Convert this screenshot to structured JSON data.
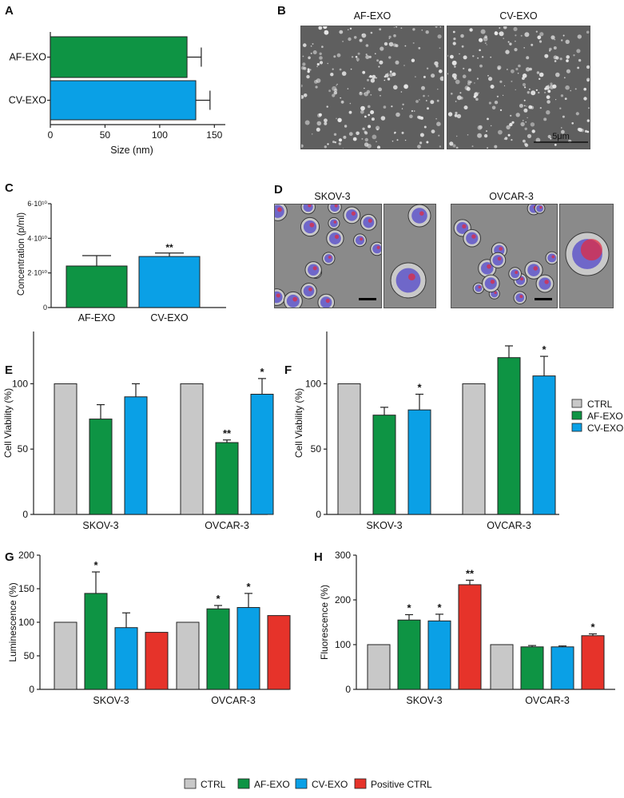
{
  "colors": {
    "ctrl": "#c8c8c8",
    "af": "#0e9444",
    "cv": "#0aa0e6",
    "pos": "#e6332a",
    "bar_stroke": "#222222"
  },
  "panels": {
    "A": {
      "letter": "A",
      "chart_data": {
        "type": "bar",
        "orientation": "horizontal",
        "categories": [
          "AF-EXO",
          "CV-EXO"
        ],
        "values": [
          125,
          133
        ],
        "errors": [
          13,
          13
        ],
        "xlabel": "Size (nm)",
        "xlim": [
          0,
          160
        ],
        "xticks": [
          "0",
          "50",
          "100",
          "150"
        ],
        "tick_values": [
          0,
          50,
          100,
          150
        ]
      }
    },
    "B": {
      "letter": "B",
      "labels": [
        "AF-EXO",
        "CV-EXO"
      ],
      "scale_bar": "5μm"
    },
    "C": {
      "letter": "C",
      "chart_data": {
        "type": "bar",
        "categories": [
          "AF-EXO",
          "CV-EXO"
        ],
        "values": [
          24000000000.0,
          29500000000.0
        ],
        "errors": [
          6000000000.0,
          2000000000.0
        ],
        "ylabel": "Concentration (p/ml)",
        "ylim": [
          0,
          60000000000.0
        ],
        "yticks": [
          "0",
          "2·10¹⁰",
          "4·10¹⁰",
          "6·10¹⁰"
        ],
        "tick_values": [
          0,
          20000000000.0,
          40000000000.0,
          60000000000.0
        ],
        "annotations": [
          "",
          "**"
        ]
      }
    },
    "D": {
      "letter": "D",
      "labels": [
        "SKOV-3",
        "OVCAR-3"
      ]
    },
    "E": {
      "letter": "E",
      "chart_data": {
        "type": "bar",
        "groups": [
          "SKOV-3",
          "OVCAR-3"
        ],
        "ylabel": "Cell Viability (%)",
        "ylim": [
          0,
          140
        ],
        "yticks": [
          "0",
          "50",
          "100"
        ],
        "tick_values": [
          0,
          50,
          100
        ],
        "series": [
          {
            "name": "CTRL",
            "color_key": "ctrl",
            "values": [
              100,
              100
            ],
            "errors": [
              0,
              0
            ],
            "annotations": [
              "",
              ""
            ]
          },
          {
            "name": "AF-EXO",
            "color_key": "af",
            "values": [
              73,
              55
            ],
            "errors": [
              11,
              2
            ],
            "annotations": [
              "",
              "**"
            ]
          },
          {
            "name": "CV-EXO",
            "color_key": "cv",
            "values": [
              90,
              92
            ],
            "errors": [
              10,
              12
            ],
            "annotations": [
              "",
              "*"
            ]
          }
        ]
      }
    },
    "F": {
      "letter": "F",
      "chart_data": {
        "type": "bar",
        "groups": [
          "SKOV-3",
          "OVCAR-3"
        ],
        "ylabel": "Cell Viability (%)",
        "ylim": [
          0,
          140
        ],
        "yticks": [
          "0",
          "50",
          "100"
        ],
        "tick_values": [
          0,
          50,
          100
        ],
        "series": [
          {
            "name": "CTRL",
            "color_key": "ctrl",
            "values": [
              100,
              100
            ],
            "errors": [
              0,
              0
            ],
            "annotations": [
              "",
              ""
            ]
          },
          {
            "name": "AF-EXO",
            "color_key": "af",
            "values": [
              76,
              120
            ],
            "errors": [
              6,
              9
            ],
            "annotations": [
              "",
              ""
            ]
          },
          {
            "name": "CV-EXO",
            "color_key": "cv",
            "values": [
              80,
              106
            ],
            "errors": [
              12,
              15
            ],
            "annotations": [
              "*",
              "*"
            ]
          }
        ]
      }
    },
    "G": {
      "letter": "G",
      "chart_data": {
        "type": "bar",
        "groups": [
          "SKOV-3",
          "OVCAR-3"
        ],
        "ylabel": "Luminescence (%)",
        "ylim": [
          0,
          200
        ],
        "yticks": [
          "0",
          "50",
          "100",
          "150",
          "200"
        ],
        "tick_values": [
          0,
          50,
          100,
          150,
          200
        ],
        "series": [
          {
            "name": "CTRL",
            "color_key": "ctrl",
            "values": [
              100,
              100
            ],
            "errors": [
              0,
              0
            ],
            "annotations": [
              "",
              ""
            ]
          },
          {
            "name": "AF-EXO",
            "color_key": "af",
            "values": [
              143,
              120
            ],
            "errors": [
              32,
              5
            ],
            "annotations": [
              "*",
              "*"
            ]
          },
          {
            "name": "CV-EXO",
            "color_key": "cv",
            "values": [
              92,
              122
            ],
            "errors": [
              22,
              21
            ],
            "annotations": [
              "",
              "*"
            ]
          },
          {
            "name": "Positive CTRL",
            "color_key": "pos",
            "values": [
              85,
              110
            ],
            "errors": [
              0,
              0
            ],
            "annotations": [
              "",
              ""
            ]
          }
        ]
      }
    },
    "H": {
      "letter": "H",
      "chart_data": {
        "type": "bar",
        "groups": [
          "SKOV-3",
          "OVCAR-3"
        ],
        "ylabel": "Fluorescence (%)",
        "ylim": [
          0,
          300
        ],
        "yticks": [
          "0",
          "100",
          "200",
          "300"
        ],
        "tick_values": [
          0,
          100,
          200,
          300
        ],
        "series": [
          {
            "name": "CTRL",
            "color_key": "ctrl",
            "values": [
              100,
              100
            ],
            "errors": [
              0,
              0
            ],
            "annotations": [
              "",
              ""
            ]
          },
          {
            "name": "AF-EXO",
            "color_key": "af",
            "values": [
              155,
              95
            ],
            "errors": [
              12,
              3
            ],
            "annotations": [
              "*",
              ""
            ]
          },
          {
            "name": "CV-EXO",
            "color_key": "cv",
            "values": [
              153,
              95
            ],
            "errors": [
              15,
              2
            ],
            "annotations": [
              "*",
              ""
            ]
          },
          {
            "name": "Positive CTRL",
            "color_key": "pos",
            "values": [
              234,
              120
            ],
            "errors": [
              10,
              4
            ],
            "annotations": [
              "**",
              "*"
            ]
          }
        ]
      }
    }
  },
  "legend_EF": [
    {
      "label": "CTRL",
      "color_key": "ctrl"
    },
    {
      "label": "AF-EXO",
      "color_key": "af"
    },
    {
      "label": "CV-EXO",
      "color_key": "cv"
    }
  ],
  "legend_GH": [
    {
      "label": "CTRL",
      "color_key": "ctrl"
    },
    {
      "label": "AF-EXO",
      "color_key": "af"
    },
    {
      "label": "CV-EXO",
      "color_key": "cv"
    },
    {
      "label": "Positive CTRL",
      "color_key": "pos"
    }
  ]
}
